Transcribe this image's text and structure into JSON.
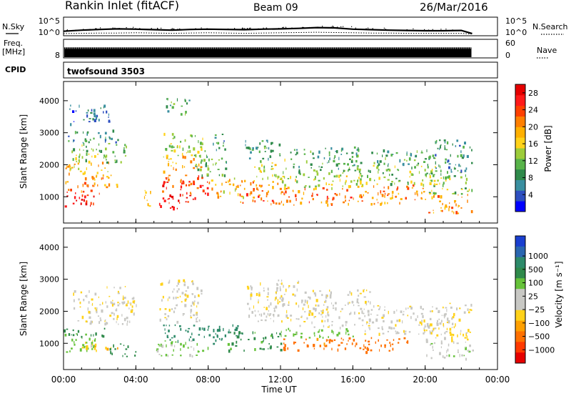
{
  "header": {
    "station": "Rankin Inlet (fitACF)",
    "beam": "Beam 09",
    "date": "26/Mar/2016"
  },
  "chart_data": [
    {
      "name": "noise",
      "type": "line",
      "left_label": "N.Sky",
      "right_label": "N.Search",
      "y_ticks_left": [
        "10^5",
        "10^0"
      ],
      "y_ticks_right": [
        "10^5",
        "10^0"
      ],
      "x_hours": [
        0.0,
        1.0,
        2.0,
        3.0,
        4.0,
        5.0,
        6.0,
        7.0,
        8.0,
        9.0,
        10.0,
        11.0,
        12.0,
        13.0,
        14.0,
        15.0,
        16.0,
        17.0,
        18.0,
        19.0,
        20.0,
        21.0,
        22.0,
        22.6
      ],
      "sky_log10": [
        1.2,
        1.6,
        1.9,
        2.1,
        2.0,
        1.8,
        1.6,
        1.9,
        2.0,
        1.9,
        1.8,
        2.0,
        2.1,
        2.3,
        2.6,
        2.5,
        2.0,
        1.8,
        1.6,
        1.5,
        1.4,
        1.4,
        1.5,
        0.3
      ],
      "search_log10": [
        0.3,
        0.4,
        0.5,
        0.5,
        0.6,
        0.5,
        0.4,
        0.5,
        0.6,
        0.5,
        0.4,
        0.5,
        0.6,
        0.7,
        0.8,
        0.7,
        0.6,
        0.5,
        0.5,
        0.4,
        0.4,
        0.4,
        0.4,
        0.1
      ]
    },
    {
      "name": "frequency",
      "type": "bar",
      "left_label": "Freq.",
      "left_unit": "[MHz]",
      "right_label": "Nave",
      "y_ticks_left": [
        "8"
      ],
      "y_ticks_right": [
        "60",
        "0"
      ],
      "freq_mhz_level": 8,
      "nave_level": 20,
      "x_range_hours": [
        0,
        22.6
      ]
    },
    {
      "name": "cpid",
      "left_label": "CPID",
      "program": "twofsound 3503"
    },
    {
      "name": "power",
      "type": "heatmap",
      "ylabel": "Slant Range [km]",
      "yticks": [
        1000,
        2000,
        3000,
        4000
      ],
      "ylim": [
        180,
        4600
      ],
      "colorbar_label": "Power [dB]",
      "colorbar_ticks": [
        4,
        8,
        12,
        16,
        20,
        24,
        28
      ],
      "colors": [
        "#0000ff",
        "#2e4fc0",
        "#3a8fa0",
        "#2f8a4b",
        "#58b34a",
        "#9ccc3a",
        "#ffd21a",
        "#ffb000",
        "#ff7f00",
        "#ff4000",
        "#ff1a1a",
        "#e60000"
      ],
      "regions": [
        {
          "t0": 0.0,
          "t1": 1.8,
          "r0": 700,
          "r1": 1100,
          "value": 28
        },
        {
          "t0": 0.0,
          "t1": 2.0,
          "r0": 1100,
          "r1": 1500,
          "value": 22
        },
        {
          "t0": 0.0,
          "t1": 2.5,
          "r0": 1600,
          "r1": 2100,
          "value": 18
        },
        {
          "t0": 0.2,
          "t1": 3.5,
          "r0": 2100,
          "r1": 2700,
          "value": 12
        },
        {
          "t0": 0.1,
          "t1": 3.0,
          "r0": 2700,
          "r1": 3100,
          "value": 8
        },
        {
          "t0": 1.5,
          "t1": 3.0,
          "r0": 1300,
          "r1": 1700,
          "value": 20
        },
        {
          "t0": 0.3,
          "t1": 2.5,
          "r0": 3300,
          "r1": 3900,
          "value": 6
        },
        {
          "t0": 4.4,
          "t1": 4.8,
          "r0": 700,
          "r1": 1400,
          "value": 16
        },
        {
          "t0": 5.2,
          "t1": 7.4,
          "r0": 650,
          "r1": 1100,
          "value": 27
        },
        {
          "t0": 5.4,
          "t1": 8.0,
          "r0": 1100,
          "r1": 1700,
          "value": 24
        },
        {
          "t0": 5.4,
          "t1": 7.6,
          "r0": 1800,
          "r1": 2300,
          "value": 18
        },
        {
          "t0": 5.3,
          "t1": 7.8,
          "r0": 2300,
          "r1": 3000,
          "value": 14
        },
        {
          "t0": 5.5,
          "t1": 7.0,
          "r0": 3600,
          "r1": 4100,
          "value": 10
        },
        {
          "t0": 8.0,
          "t1": 10.0,
          "r0": 1000,
          "r1": 1600,
          "value": 18
        },
        {
          "t0": 7.2,
          "t1": 9.0,
          "r0": 1700,
          "r1": 2400,
          "value": 10
        },
        {
          "t0": 8.2,
          "t1": 9.0,
          "r0": 2400,
          "r1": 3000,
          "value": 7
        },
        {
          "t0": 9.5,
          "t1": 12.0,
          "r0": 800,
          "r1": 1500,
          "value": 22
        },
        {
          "t0": 10.5,
          "t1": 12.3,
          "r0": 1500,
          "r1": 2200,
          "value": 14
        },
        {
          "t0": 10.0,
          "t1": 12.0,
          "r0": 2200,
          "r1": 2800,
          "value": 9
        },
        {
          "t0": 12.0,
          "t1": 16.0,
          "r0": 750,
          "r1": 1300,
          "value": 22
        },
        {
          "t0": 12.0,
          "t1": 16.5,
          "r0": 1300,
          "r1": 1800,
          "value": 14
        },
        {
          "t0": 12.5,
          "t1": 16.5,
          "r0": 1800,
          "r1": 2600,
          "value": 10
        },
        {
          "t0": 16.0,
          "t1": 20.0,
          "r0": 800,
          "r1": 1400,
          "value": 21
        },
        {
          "t0": 16.0,
          "t1": 21.0,
          "r0": 1400,
          "r1": 2000,
          "value": 13
        },
        {
          "t0": 17.0,
          "t1": 20.5,
          "r0": 2000,
          "r1": 2500,
          "value": 10
        },
        {
          "t0": 20.0,
          "t1": 22.6,
          "r0": 500,
          "r1": 1100,
          "value": 20
        },
        {
          "t0": 20.0,
          "t1": 22.6,
          "r0": 1100,
          "r1": 1800,
          "value": 13
        },
        {
          "t0": 20.5,
          "t1": 22.6,
          "r0": 1800,
          "r1": 2800,
          "value": 8
        }
      ]
    },
    {
      "name": "velocity",
      "type": "heatmap",
      "ylabel": "Slant Range [km]",
      "yticks": [
        1000,
        2000,
        3000,
        4000
      ],
      "ylim": [
        180,
        4600
      ],
      "xlabel": "Time UT",
      "xticks": [
        "00:00",
        "04:00",
        "08:00",
        "12:00",
        "16:00",
        "20:00",
        "00:00"
      ],
      "xlim_hours": [
        0,
        24
      ],
      "colorbar_label": "Velocity [m s⁻¹]",
      "colorbar_ticks": [
        "1000",
        "500",
        "100",
        "25",
        "−25",
        "−100",
        "−500",
        "−1000"
      ],
      "colors": [
        "#1a3fd0",
        "#2a66b0",
        "#2d8a6a",
        "#2f8a4b",
        "#66c23a",
        "#c8c8c4",
        "#c8c8c4",
        "#ffd21a",
        "#ffa000",
        "#ff7000",
        "#ff3a00",
        "#e60000"
      ],
      "levels": [
        1500,
        1000,
        500,
        250,
        100,
        25,
        -25,
        -100,
        -250,
        -500,
        -1000,
        -1500
      ],
      "regions": [
        {
          "t0": 0.0,
          "t1": 1.8,
          "r0": 700,
          "r1": 1200,
          "value": 150
        },
        {
          "t0": 0.0,
          "t1": 2.5,
          "r0": 1200,
          "r1": 1500,
          "value": 300
        },
        {
          "t0": 0.5,
          "t1": 4.0,
          "r0": 1600,
          "r1": 2800,
          "value": 0
        },
        {
          "t0": 1.0,
          "t1": 3.0,
          "r0": 800,
          "r1": 1100,
          "value": -80
        },
        {
          "t0": 2.5,
          "t1": 4.0,
          "r0": 600,
          "r1": 1000,
          "value": 400
        },
        {
          "t0": 5.0,
          "t1": 8.0,
          "r0": 600,
          "r1": 1100,
          "value": 120
        },
        {
          "t0": 5.5,
          "t1": 8.0,
          "r0": 1100,
          "r1": 1600,
          "value": 600
        },
        {
          "t0": 5.3,
          "t1": 7.6,
          "r0": 1700,
          "r1": 3000,
          "value": 0
        },
        {
          "t0": 8.0,
          "t1": 10.0,
          "r0": 1000,
          "r1": 1600,
          "value": 700
        },
        {
          "t0": 9.0,
          "t1": 12.0,
          "r0": 800,
          "r1": 1400,
          "value": 300
        },
        {
          "t0": 10.0,
          "t1": 13.0,
          "r0": 1700,
          "r1": 3000,
          "value": 0
        },
        {
          "t0": 12.0,
          "t1": 16.0,
          "r0": 800,
          "r1": 1200,
          "value": -300
        },
        {
          "t0": 12.0,
          "t1": 16.0,
          "r0": 1200,
          "r1": 1500,
          "value": 150
        },
        {
          "t0": 13.0,
          "t1": 17.0,
          "r0": 1500,
          "r1": 2700,
          "value": 0
        },
        {
          "t0": 16.0,
          "t1": 19.0,
          "r0": 750,
          "r1": 1200,
          "value": -400
        },
        {
          "t0": 16.5,
          "t1": 21.0,
          "r0": 1300,
          "r1": 2200,
          "value": 10
        },
        {
          "t0": 20.0,
          "t1": 22.6,
          "r0": 500,
          "r1": 1100,
          "value": 60
        },
        {
          "t0": 20.0,
          "t1": 22.6,
          "r0": 1100,
          "r1": 1700,
          "value": -30
        },
        {
          "t0": 21.0,
          "t1": 22.6,
          "r0": 1700,
          "r1": 2300,
          "value": 0
        }
      ]
    }
  ]
}
